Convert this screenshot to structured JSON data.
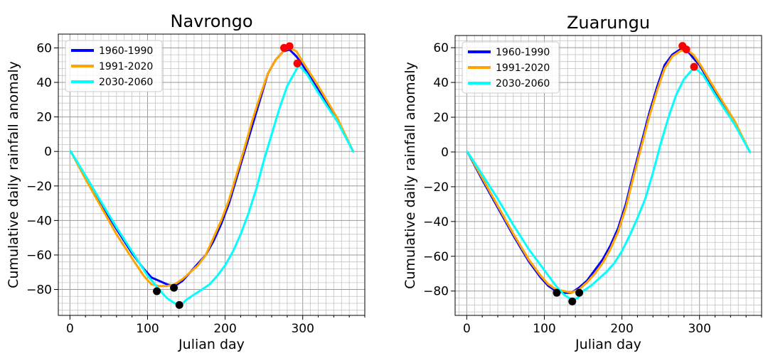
{
  "chart_data": [
    {
      "type": "line",
      "title": "Navrongo",
      "xlabel": "Julian day",
      "ylabel": "Cumulative daily rainfall anomaly",
      "xlim": [
        -15,
        380
      ],
      "ylim": [
        -95,
        68
      ],
      "x_ticks": [
        0,
        100,
        200,
        300
      ],
      "x_tick_labels": [
        "0",
        "100",
        "200",
        "300"
      ],
      "y_ticks": [
        -80,
        -60,
        -40,
        -20,
        0,
        20,
        40,
        60
      ],
      "y_tick_labels": [
        "−80",
        "−60",
        "−40",
        "−20",
        "0",
        "20",
        "40",
        "60"
      ],
      "grid": true,
      "legend_position": "top-left",
      "series": [
        {
          "name": "1960-1990",
          "color": "#0000ff",
          "points": [
            [
              1,
              0
            ],
            [
              20,
              -15
            ],
            [
              40,
              -30
            ],
            [
              60,
              -45
            ],
            [
              80,
              -59
            ],
            [
              95,
              -68
            ],
            [
              105,
              -73
            ],
            [
              115,
              -75
            ],
            [
              125,
              -77
            ],
            [
              135,
              -78
            ],
            [
              145,
              -75
            ],
            [
              155,
              -70
            ],
            [
              165,
              -65
            ],
            [
              175,
              -60
            ],
            [
              185,
              -52
            ],
            [
              195,
              -42
            ],
            [
              205,
              -30
            ],
            [
              215,
              -15
            ],
            [
              225,
              0
            ],
            [
              235,
              15
            ],
            [
              245,
              30
            ],
            [
              255,
              45
            ],
            [
              265,
              53
            ],
            [
              275,
              58
            ],
            [
              283,
              59
            ],
            [
              292,
              55
            ],
            [
              300,
              50
            ],
            [
              320,
              36
            ],
            [
              345,
              18
            ],
            [
              365,
              0
            ]
          ],
          "markers": [
            {
              "x": 112,
              "y": -81,
              "color": "#000000"
            },
            {
              "x": 283,
              "y": 61,
              "color": "#ff0000"
            }
          ]
        },
        {
          "name": "1991-2020",
          "color": "#ffa500",
          "points": [
            [
              1,
              0
            ],
            [
              20,
              -16
            ],
            [
              40,
              -32
            ],
            [
              60,
              -48
            ],
            [
              80,
              -62
            ],
            [
              95,
              -72
            ],
            [
              105,
              -77
            ],
            [
              115,
              -78
            ],
            [
              125,
              -78
            ],
            [
              135,
              -77
            ],
            [
              145,
              -74
            ],
            [
              155,
              -70
            ],
            [
              165,
              -66
            ],
            [
              175,
              -60
            ],
            [
              185,
              -50
            ],
            [
              195,
              -40
            ],
            [
              205,
              -28
            ],
            [
              215,
              -13
            ],
            [
              225,
              2
            ],
            [
              235,
              18
            ],
            [
              245,
              32
            ],
            [
              255,
              45
            ],
            [
              265,
              53
            ],
            [
              275,
              58
            ],
            [
              283,
              60
            ],
            [
              292,
              58
            ],
            [
              300,
              52
            ],
            [
              320,
              38
            ],
            [
              345,
              19
            ],
            [
              365,
              0
            ]
          ],
          "markers": [
            {
              "x": 134,
              "y": -79,
              "color": "#000000"
            },
            {
              "x": 276,
              "y": 60,
              "color": "#ff0000"
            }
          ]
        },
        {
          "name": "2030-2060",
          "color": "#00ffff",
          "points": [
            [
              1,
              0
            ],
            [
              20,
              -14
            ],
            [
              40,
              -29
            ],
            [
              60,
              -44
            ],
            [
              80,
              -58
            ],
            [
              100,
              -72
            ],
            [
              115,
              -80
            ],
            [
              125,
              -85
            ],
            [
              135,
              -88
            ],
            [
              143,
              -89
            ],
            [
              150,
              -86
            ],
            [
              160,
              -83
            ],
            [
              170,
              -80
            ],
            [
              180,
              -77
            ],
            [
              190,
              -72
            ],
            [
              200,
              -66
            ],
            [
              210,
              -58
            ],
            [
              220,
              -48
            ],
            [
              230,
              -36
            ],
            [
              240,
              -22
            ],
            [
              250,
              -5
            ],
            [
              260,
              10
            ],
            [
              270,
              25
            ],
            [
              280,
              38
            ],
            [
              290,
              46
            ],
            [
              295,
              50
            ],
            [
              305,
              45
            ],
            [
              320,
              34
            ],
            [
              345,
              17
            ],
            [
              365,
              0
            ]
          ],
          "markers": [
            {
              "x": 141,
              "y": -89,
              "color": "#000000"
            },
            {
              "x": 293,
              "y": 51,
              "color": "#ff0000"
            }
          ]
        }
      ]
    },
    {
      "type": "line",
      "title": "Zuarungu",
      "xlabel": "Julian day",
      "ylabel": "Cumulative daily rainfall anomaly",
      "xlim": [
        -15,
        380
      ],
      "ylim": [
        -94,
        67
      ],
      "x_ticks": [
        0,
        100,
        200,
        300
      ],
      "x_tick_labels": [
        "0",
        "100",
        "200",
        "300"
      ],
      "y_ticks": [
        -80,
        -60,
        -40,
        -20,
        0,
        20,
        40,
        60
      ],
      "y_tick_labels": [
        "−80",
        "−60",
        "−40",
        "−20",
        "0",
        "20",
        "40",
        "60"
      ],
      "grid": true,
      "legend_position": "top-left",
      "series": [
        {
          "name": "1960-1990",
          "color": "#0000ff",
          "points": [
            [
              1,
              0
            ],
            [
              20,
              -16
            ],
            [
              40,
              -32
            ],
            [
              60,
              -48
            ],
            [
              80,
              -63
            ],
            [
              95,
              -72
            ],
            [
              105,
              -77
            ],
            [
              115,
              -80
            ],
            [
              125,
              -81
            ],
            [
              135,
              -81
            ],
            [
              145,
              -78
            ],
            [
              155,
              -74
            ],
            [
              165,
              -68
            ],
            [
              175,
              -62
            ],
            [
              185,
              -54
            ],
            [
              195,
              -44
            ],
            [
              205,
              -30
            ],
            [
              215,
              -12
            ],
            [
              225,
              5
            ],
            [
              235,
              22
            ],
            [
              245,
              37
            ],
            [
              255,
              50
            ],
            [
              265,
              56
            ],
            [
              275,
              59
            ],
            [
              283,
              59
            ],
            [
              292,
              54
            ],
            [
              300,
              50
            ],
            [
              320,
              35
            ],
            [
              345,
              17
            ],
            [
              365,
              0
            ]
          ],
          "markers": [
            {
              "x": 116,
              "y": -81,
              "color": "#000000"
            },
            {
              "x": 283,
              "y": 59,
              "color": "#ff0000"
            }
          ]
        },
        {
          "name": "1991-2020",
          "color": "#ffa500",
          "points": [
            [
              1,
              0
            ],
            [
              20,
              -15
            ],
            [
              40,
              -31
            ],
            [
              60,
              -47
            ],
            [
              80,
              -62
            ],
            [
              95,
              -71
            ],
            [
              105,
              -76
            ],
            [
              115,
              -79
            ],
            [
              125,
              -80
            ],
            [
              135,
              -81
            ],
            [
              145,
              -79
            ],
            [
              155,
              -75
            ],
            [
              165,
              -70
            ],
            [
              175,
              -64
            ],
            [
              185,
              -56
            ],
            [
              195,
              -46
            ],
            [
              205,
              -32
            ],
            [
              215,
              -14
            ],
            [
              225,
              3
            ],
            [
              235,
              20
            ],
            [
              245,
              35
            ],
            [
              255,
              48
            ],
            [
              265,
              55
            ],
            [
              275,
              58
            ],
            [
              283,
              59
            ],
            [
              292,
              56
            ],
            [
              300,
              51
            ],
            [
              320,
              36
            ],
            [
              345,
              18
            ],
            [
              365,
              0
            ]
          ],
          "markers": [
            {
              "x": 145,
              "y": -81,
              "color": "#000000"
            },
            {
              "x": 278,
              "y": 61,
              "color": "#ff0000"
            }
          ]
        },
        {
          "name": "2030-2060",
          "color": "#00ffff",
          "points": [
            [
              1,
              0
            ],
            [
              20,
              -13
            ],
            [
              40,
              -27
            ],
            [
              60,
              -42
            ],
            [
              80,
              -56
            ],
            [
              100,
              -68
            ],
            [
              115,
              -77
            ],
            [
              125,
              -82
            ],
            [
              135,
              -85
            ],
            [
              143,
              -84
            ],
            [
              150,
              -80
            ],
            [
              160,
              -77
            ],
            [
              170,
              -73
            ],
            [
              180,
              -69
            ],
            [
              190,
              -64
            ],
            [
              200,
              -57
            ],
            [
              210,
              -48
            ],
            [
              220,
              -38
            ],
            [
              230,
              -27
            ],
            [
              240,
              -12
            ],
            [
              250,
              5
            ],
            [
              260,
              20
            ],
            [
              270,
              33
            ],
            [
              280,
              42
            ],
            [
              290,
              47
            ],
            [
              295,
              48
            ],
            [
              305,
              44
            ],
            [
              320,
              33
            ],
            [
              345,
              16
            ],
            [
              365,
              0
            ]
          ],
          "markers": [
            {
              "x": 136,
              "y": -86,
              "color": "#000000"
            },
            {
              "x": 293,
              "y": 49,
              "color": "#ff0000"
            }
          ]
        }
      ]
    }
  ]
}
